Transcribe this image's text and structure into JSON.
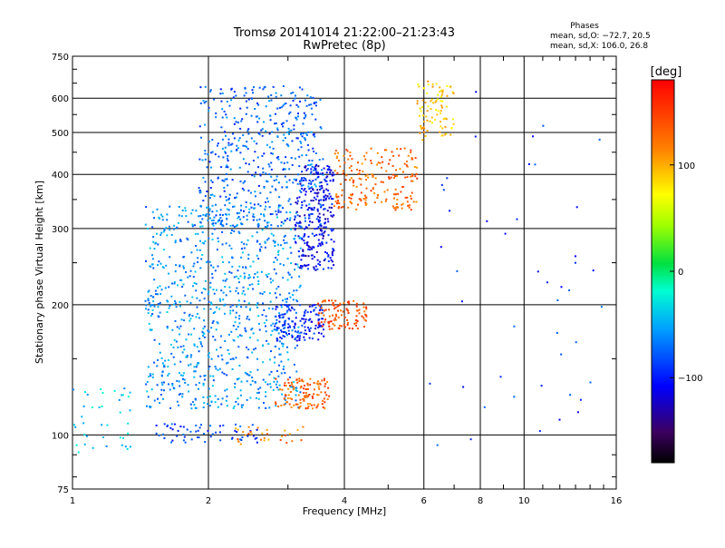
{
  "chart_data": {
    "type": "scatter",
    "title": "Tromsø 20141014 21:22:00–21:23:43",
    "subtitle": "RwPretec (8p)",
    "xlabel": "Frequency [MHz]",
    "ylabel": "Stationary phase Virtual Height [km]",
    "xscale": "log",
    "yscale": "log",
    "xlim": [
      1,
      16
    ],
    "ylim": [
      75,
      750
    ],
    "x_ticks": [
      1,
      2,
      4,
      6,
      8,
      10,
      16
    ],
    "x_tick_labels": [
      "1",
      "2",
      "4",
      "6",
      "8",
      "10",
      "16"
    ],
    "y_ticks": [
      75,
      100,
      200,
      300,
      400,
      500,
      600,
      750
    ],
    "y_tick_labels": [
      "75",
      "100",
      "200",
      "300",
      "400",
      "500",
      "600",
      "750"
    ],
    "grid": true,
    "stats": {
      "heading": "Phases",
      "line_o": "mean, sd,O: −72.7, 20.5",
      "line_x": "mean, sd,X: 106.0, 26.8"
    },
    "colorbar": {
      "label": "[deg]",
      "range": [
        -180,
        180
      ],
      "ticks": [
        100,
        0,
        -100
      ],
      "tick_labels": [
        "100",
        "0",
        "−100"
      ]
    },
    "clusters": [
      {
        "name": "low-frequency E-layer echoes",
        "x_range": [
          1.0,
          1.35
        ],
        "y_range": [
          90,
          130
        ],
        "phase": -40,
        "count": 40
      },
      {
        "name": "sporadic E traces",
        "x_range": [
          1.5,
          2.6
        ],
        "y_range": [
          96,
          106
        ],
        "phase": -90,
        "count": 60
      },
      {
        "name": "E-region yellow echoes",
        "x_range": [
          2.3,
          3.3
        ],
        "y_range": [
          95,
          105
        ],
        "phase": 120,
        "count": 30
      },
      {
        "name": "F-layer spread echoes (light blue)",
        "x_range": [
          1.45,
          3.2
        ],
        "y_range": [
          115,
          340
        ],
        "phase": -60,
        "count": 900
      },
      {
        "name": "F-layer echoes (blue)",
        "x_range": [
          1.9,
          3.6
        ],
        "y_range": [
          300,
          640
        ],
        "phase": -75,
        "count": 500
      },
      {
        "name": "F-layer trace near 170 km",
        "x_range": [
          2.8,
          3.6
        ],
        "y_range": [
          165,
          200
        ],
        "phase": -100,
        "count": 140
      },
      {
        "name": "F-layer dense band (dark blue)",
        "x_range": [
          3.1,
          3.8
        ],
        "y_range": [
          240,
          420
        ],
        "phase": -110,
        "count": 280
      },
      {
        "name": "X-mode echoes near 125 km",
        "x_range": [
          2.8,
          3.7
        ],
        "y_range": [
          115,
          135
        ],
        "phase": 130,
        "count": 120
      },
      {
        "name": "X-mode echoes near 190 km",
        "x_range": [
          3.5,
          4.5
        ],
        "y_range": [
          175,
          205
        ],
        "phase": 140,
        "count": 100
      },
      {
        "name": "X-mode trace 330-460 km",
        "x_range": [
          3.8,
          5.8
        ],
        "y_range": [
          330,
          460
        ],
        "phase": 130,
        "count": 200
      },
      {
        "name": "X-mode trace near 600 km",
        "x_range": [
          5.8,
          7.0
        ],
        "y_range": [
          480,
          660
        ],
        "phase": 90,
        "count": 90
      },
      {
        "name": "high-frequency scattered points",
        "x_range": [
          6.0,
          15.0
        ],
        "y_range": [
          90,
          650
        ],
        "phase": -90,
        "count": 45
      }
    ]
  }
}
